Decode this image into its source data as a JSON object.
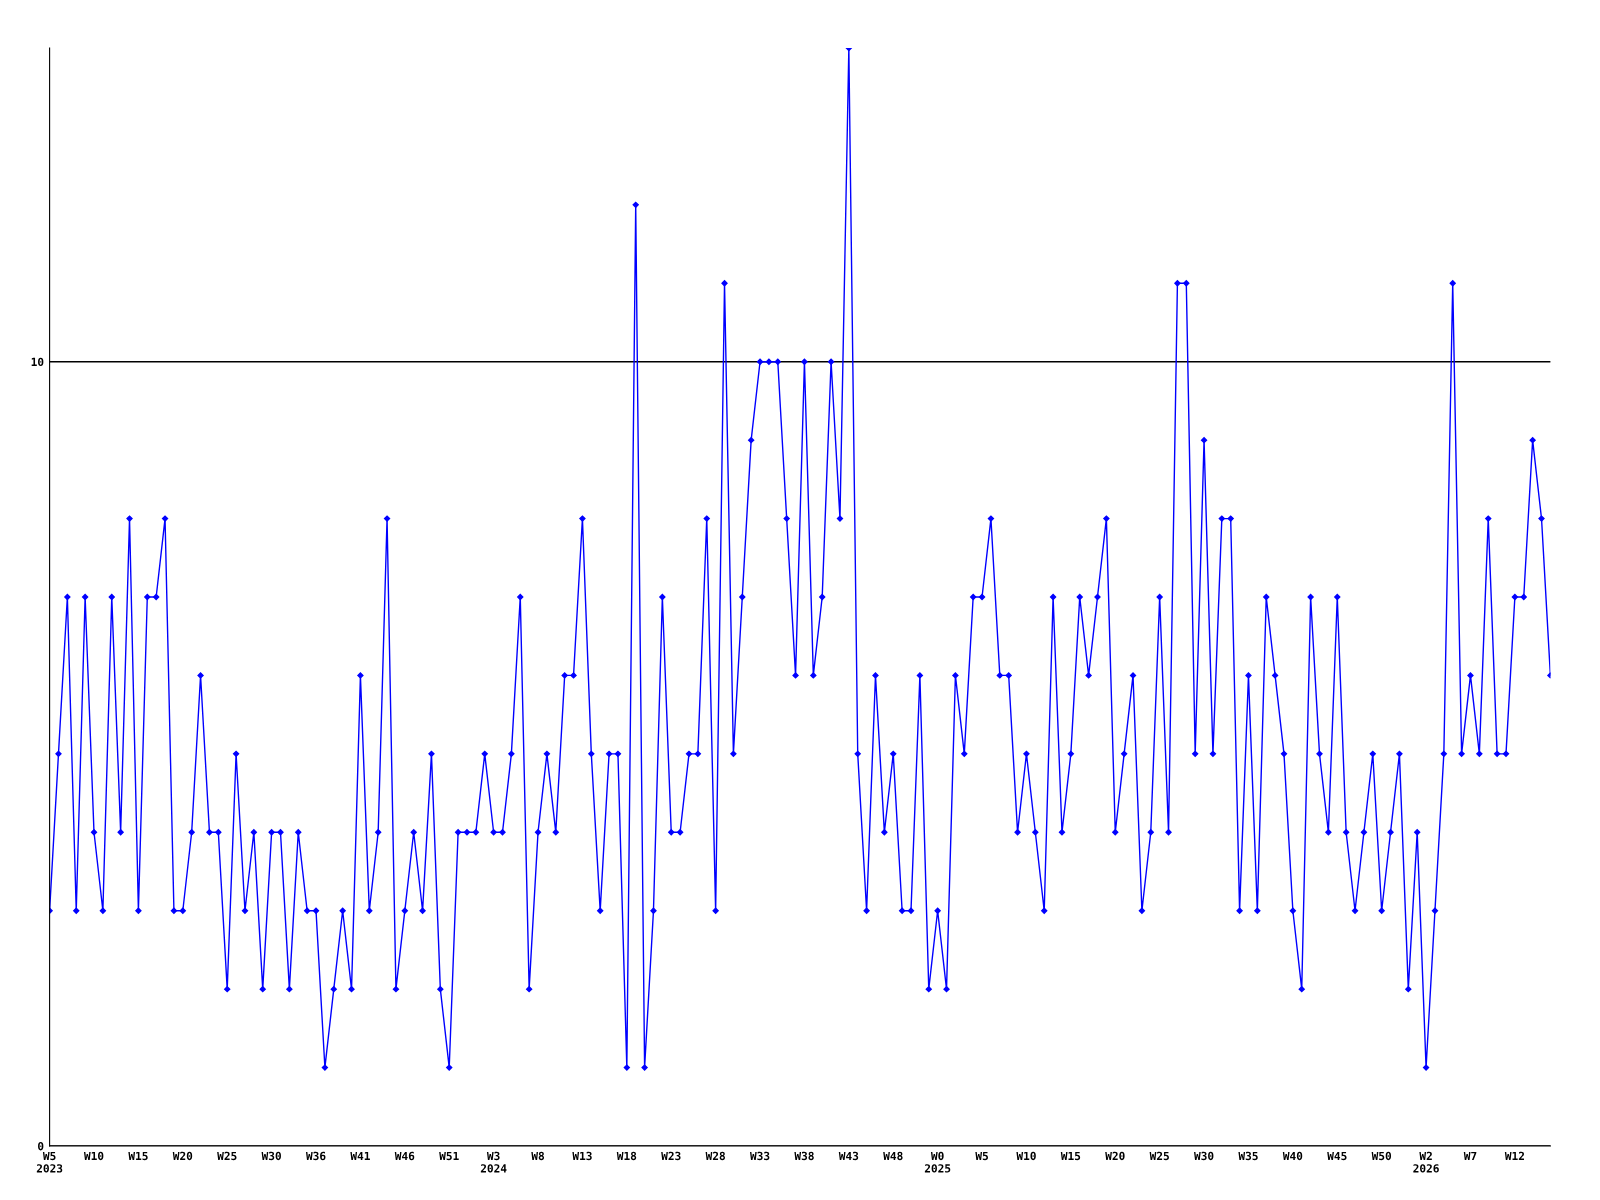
{
  "chart_data": {
    "type": "line",
    "categories": [
      "W5\n2023",
      null,
      null,
      null,
      null,
      "W10",
      null,
      null,
      null,
      null,
      "W15",
      null,
      null,
      null,
      null,
      "W20",
      null,
      null,
      null,
      null,
      "W25",
      null,
      null,
      null,
      null,
      "W30",
      null,
      null,
      null,
      null,
      "W36",
      null,
      null,
      null,
      null,
      "W41",
      null,
      null,
      null,
      null,
      "W46",
      null,
      null,
      null,
      null,
      "W51",
      null,
      null,
      null,
      null,
      "W3\n2024",
      null,
      null,
      null,
      null,
      "W8",
      null,
      null,
      null,
      null,
      "W13",
      null,
      null,
      null,
      null,
      "W18",
      null,
      null,
      null,
      null,
      "W23",
      null,
      null,
      null,
      null,
      "W28",
      null,
      null,
      null,
      null,
      "W33",
      null,
      null,
      null,
      null,
      "W38",
      null,
      null,
      null,
      null,
      "W43",
      null,
      null,
      null,
      null,
      "W48",
      null,
      null,
      null,
      null,
      "W0\n2025",
      null,
      null,
      null,
      null,
      "W5",
      null,
      null,
      null,
      null,
      "W10",
      null,
      null,
      null,
      null,
      "W15",
      null,
      null,
      null,
      null,
      "W20",
      null,
      null,
      null,
      null,
      "W25",
      null,
      null,
      null,
      null,
      "W30",
      null,
      null,
      null,
      null,
      "W35",
      null,
      null,
      null,
      null,
      "W40",
      null,
      null,
      null,
      null,
      "W45",
      null,
      null,
      null,
      null,
      "W50",
      null,
      null,
      null,
      null,
      "W2\n2026",
      null,
      null,
      null,
      null,
      "W7",
      null,
      null,
      null,
      null,
      "W12",
      null,
      null,
      null,
      null
    ],
    "series": [
      {
        "color": "#0000ff",
        "values": [
          3,
          5,
          7,
          3,
          7,
          4,
          3,
          7,
          4,
          8,
          3,
          7,
          7,
          8,
          3,
          3,
          4,
          6,
          4,
          4,
          2,
          5,
          3,
          4,
          2,
          4,
          4,
          2,
          4,
          3,
          3,
          1,
          2,
          3,
          2,
          6,
          3,
          4,
          8,
          2,
          3,
          4,
          3,
          5,
          2,
          1,
          4,
          4,
          4,
          5,
          4,
          4,
          5,
          7,
          2,
          4,
          5,
          4,
          6,
          6,
          8,
          5,
          3,
          5,
          5,
          1,
          12,
          1,
          3,
          7,
          4,
          4,
          5,
          5,
          8,
          3,
          11,
          5,
          7,
          9,
          10,
          10,
          10,
          8,
          6,
          10,
          6,
          7,
          10,
          8,
          14,
          5,
          3,
          6,
          4,
          5,
          3,
          3,
          6,
          2,
          3,
          2,
          6,
          5,
          7,
          7,
          8,
          6,
          6,
          4,
          5,
          4,
          3,
          7,
          4,
          5,
          7,
          6,
          7,
          8,
          4,
          5,
          6,
          3,
          4,
          7,
          4,
          11,
          11,
          5,
          9,
          5,
          8,
          8,
          3,
          6,
          3,
          7,
          6,
          5,
          3,
          2,
          7,
          5,
          4,
          7,
          4,
          3,
          4,
          5,
          3,
          4,
          5,
          2,
          4,
          1,
          3,
          5,
          11,
          5,
          6,
          5,
          8,
          5,
          5,
          7,
          7,
          9,
          8,
          6
        ]
      }
    ],
    "ylim": [
      0,
      14
    ],
    "yticks": [
      0,
      10
    ],
    "grid": "y",
    "marker": "diamond",
    "line_style": "solid",
    "legend": false
  }
}
